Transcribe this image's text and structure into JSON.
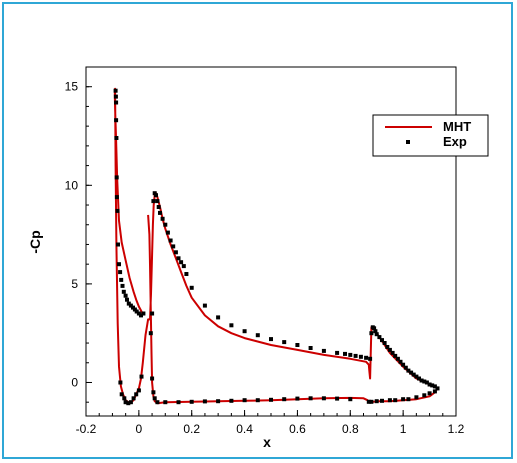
{
  "chart_data": {
    "type": "line",
    "xlabel": "x",
    "ylabel": "-Cp",
    "xlim": [
      -0.2,
      1.2
    ],
    "ylim": [
      -1.7,
      16
    ],
    "x_ticks": [
      -0.2,
      0,
      0.2,
      0.4,
      0.6,
      0.8,
      1,
      1.2
    ],
    "x_tick_labels": [
      "-0.2",
      "0",
      "0.2",
      "0.4",
      "0.6",
      "0.8",
      "1",
      "1.2"
    ],
    "y_ticks": [
      0,
      5,
      10,
      15
    ],
    "y_tick_labels": [
      "0",
      "5",
      "10",
      "15"
    ],
    "grid": false,
    "legend_position": "top-right",
    "colors": {
      "MHT": "#cc0000",
      "Exp": "#000000",
      "frame": "#2fa7d6"
    },
    "series": [
      {
        "name": "MHT",
        "style": "line",
        "x": [
          0.017,
          0.008,
          0.0,
          -0.01,
          -0.02,
          -0.035,
          -0.05,
          -0.065,
          -0.075,
          -0.082,
          -0.086,
          -0.09,
          -0.091,
          -0.09,
          -0.088,
          -0.085,
          -0.08,
          -0.075,
          -0.068,
          -0.06,
          -0.05,
          -0.04,
          -0.03,
          -0.02,
          -0.01,
          0.0,
          0.008,
          0.015,
          0.025,
          0.035,
          0.042,
          0.046,
          0.05,
          0.053,
          0.056,
          0.06,
          0.065,
          0.07,
          0.08,
          0.09,
          0.1,
          0.12,
          0.14,
          0.16,
          0.18,
          0.2,
          0.25,
          0.3,
          0.35,
          0.4,
          0.5,
          0.6,
          0.7,
          0.8,
          0.84,
          0.86,
          0.87,
          0.872,
          0.875,
          0.88,
          0.89,
          0.9,
          0.95,
          1.0,
          1.05,
          1.1,
          1.13,
          1.12,
          1.1,
          1.05,
          1.0,
          0.95,
          0.9,
          0.88,
          0.872,
          0.865,
          0.85,
          0.8,
          0.7,
          0.6,
          0.5,
          0.4,
          0.3,
          0.2,
          0.1,
          0.07,
          0.06,
          0.055,
          0.05,
          0.048,
          0.046,
          0.044,
          0.042,
          0.04,
          0.035
        ],
        "y": [
          3.4,
          3.65,
          3.85,
          4.2,
          4.6,
          5.3,
          6.2,
          7.1,
          8.2,
          10.3,
          12.3,
          13.9,
          14.6,
          14.9,
          11.0,
          7.0,
          3.0,
          0.8,
          -0.2,
          -0.6,
          -0.9,
          -1.0,
          -1.0,
          -0.9,
          -0.6,
          -0.3,
          0.2,
          1.0,
          2.4,
          3.2,
          3.2,
          4.5,
          6.5,
          8.0,
          9.0,
          9.5,
          9.6,
          9.4,
          8.9,
          8.3,
          7.8,
          7.0,
          6.3,
          5.6,
          4.9,
          4.3,
          3.4,
          2.85,
          2.5,
          2.25,
          1.9,
          1.65,
          1.4,
          1.2,
          1.1,
          1.05,
          0.9,
          0.6,
          0.2,
          2.8,
          2.7,
          2.5,
          1.5,
          0.8,
          0.2,
          -0.1,
          -0.3,
          -0.5,
          -0.7,
          -0.85,
          -0.9,
          -0.95,
          -0.95,
          -1.0,
          -1.0,
          -0.9,
          -0.8,
          -0.78,
          -0.8,
          -0.85,
          -0.9,
          -0.93,
          -0.95,
          -0.98,
          -1.0,
          -1.05,
          -0.95,
          -0.7,
          0.0,
          1.5,
          3.0,
          4.5,
          6.0,
          7.5,
          8.5
        ]
      },
      {
        "name": "Exp",
        "style": "markers",
        "x": [
          -0.088,
          -0.087,
          -0.086,
          -0.086,
          -0.085,
          -0.084,
          -0.083,
          -0.081,
          -0.079,
          -0.075,
          -0.071,
          -0.067,
          -0.062,
          -0.057,
          -0.05,
          -0.045,
          -0.038,
          -0.03,
          -0.022,
          -0.015,
          -0.008,
          0.0,
          0.008,
          0.017,
          -0.07,
          -0.065,
          -0.055,
          -0.05,
          -0.04,
          -0.03,
          -0.02,
          -0.01,
          0.0,
          0.01,
          0.045,
          0.05,
          0.055,
          0.06,
          0.065,
          0.07,
          0.075,
          0.08,
          0.09,
          0.1,
          0.11,
          0.12,
          0.13,
          0.14,
          0.15,
          0.16,
          0.17,
          0.18,
          0.2,
          0.25,
          0.3,
          0.35,
          0.4,
          0.45,
          0.5,
          0.55,
          0.6,
          0.65,
          0.7,
          0.75,
          0.78,
          0.8,
          0.82,
          0.84,
          0.86,
          0.875,
          0.88,
          0.885,
          0.89,
          0.895,
          0.9,
          0.91,
          0.92,
          0.93,
          0.94,
          0.95,
          0.96,
          0.97,
          0.98,
          0.99,
          1.0,
          1.01,
          1.02,
          1.03,
          1.04,
          1.05,
          1.06,
          1.07,
          1.08,
          1.09,
          1.1,
          1.11,
          1.12,
          1.13,
          1.12,
          1.1,
          1.08,
          1.05,
          1.02,
          1.0,
          0.97,
          0.95,
          0.92,
          0.9,
          0.88,
          0.87,
          0.8,
          0.75,
          0.7,
          0.65,
          0.6,
          0.55,
          0.5,
          0.45,
          0.4,
          0.35,
          0.3,
          0.25,
          0.2,
          0.15,
          0.1,
          0.07,
          0.06,
          0.055,
          0.05
        ],
        "y": [
          14.8,
          14.5,
          14.2,
          13.3,
          12.4,
          10.4,
          9.4,
          8.7,
          7.0,
          6.0,
          5.6,
          5.2,
          4.9,
          4.6,
          4.4,
          4.2,
          4.0,
          3.9,
          3.8,
          3.7,
          3.6,
          3.5,
          3.4,
          3.5,
          0.0,
          -0.6,
          -0.8,
          -1.0,
          -1.05,
          -1.0,
          -0.8,
          -0.6,
          -0.4,
          0.3,
          2.5,
          3.5,
          9.2,
          9.6,
          9.5,
          9.2,
          8.9,
          8.6,
          8.3,
          8.0,
          7.6,
          7.2,
          6.9,
          6.6,
          6.3,
          6.1,
          5.9,
          5.5,
          4.8,
          3.9,
          3.3,
          2.9,
          2.6,
          2.4,
          2.2,
          2.05,
          1.9,
          1.75,
          1.6,
          1.5,
          1.45,
          1.4,
          1.35,
          1.3,
          1.25,
          1.2,
          2.5,
          2.8,
          2.75,
          2.6,
          2.45,
          2.3,
          2.15,
          2.0,
          1.8,
          1.65,
          1.5,
          1.35,
          1.2,
          1.05,
          0.9,
          0.75,
          0.6,
          0.5,
          0.4,
          0.3,
          0.2,
          0.1,
          0.05,
          0.0,
          -0.1,
          -0.15,
          -0.2,
          -0.3,
          -0.45,
          -0.55,
          -0.65,
          -0.75,
          -0.85,
          -0.85,
          -0.9,
          -0.9,
          -0.93,
          -0.95,
          -0.98,
          -0.98,
          -0.85,
          -0.82,
          -0.8,
          -0.8,
          -0.82,
          -0.85,
          -0.88,
          -0.9,
          -0.9,
          -0.93,
          -0.95,
          -0.96,
          -0.98,
          -1.0,
          -1.0,
          -1.0,
          -0.8,
          -0.5,
          0.2
        ]
      }
    ]
  }
}
